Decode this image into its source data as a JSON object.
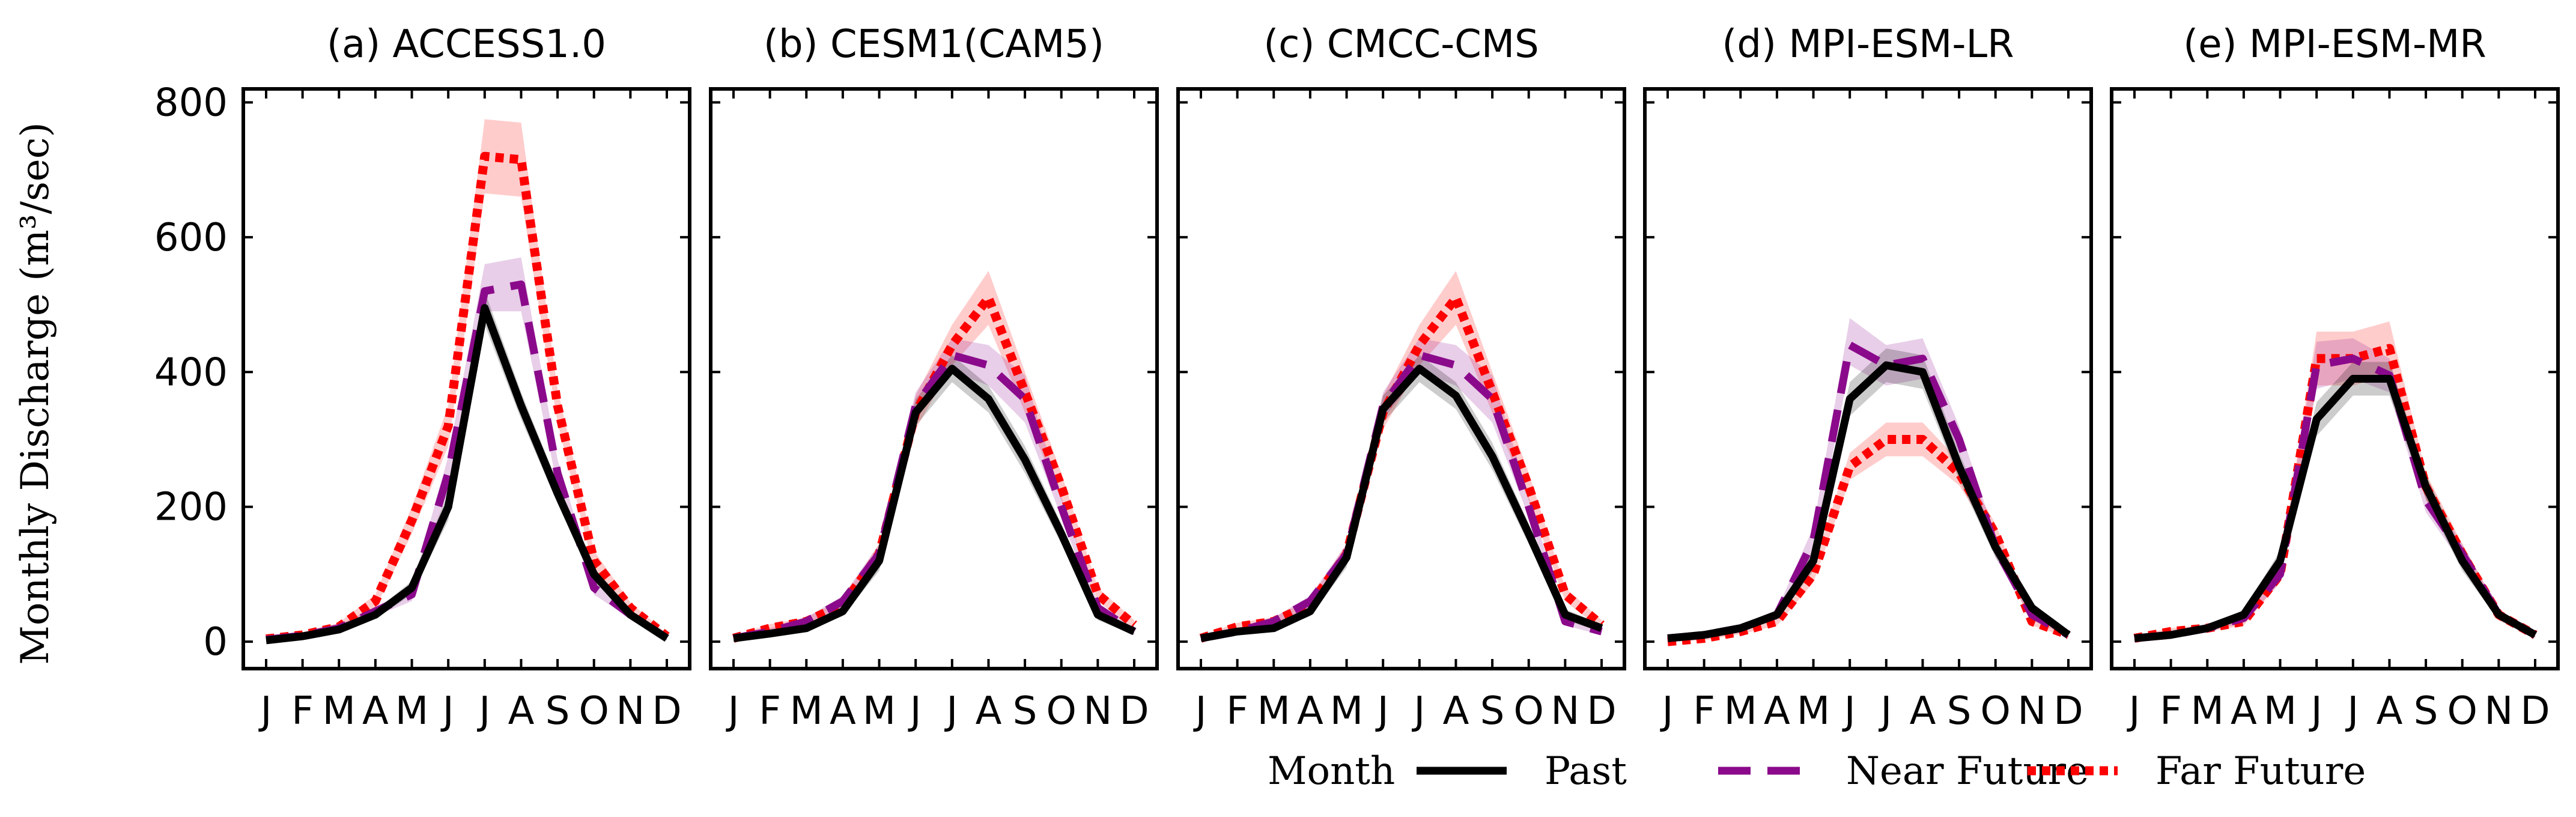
{
  "chart_data": {
    "type": "line",
    "ylabel": "Monthly Discharge (m³/sec)",
    "xlabel": "Month",
    "ylim": [
      -40,
      820
    ],
    "yticks": [
      0,
      200,
      400,
      600,
      800
    ],
    "categories": [
      "J",
      "F",
      "M",
      "A",
      "M",
      "J",
      "J",
      "A",
      "S",
      "O",
      "N",
      "D"
    ],
    "legend": {
      "position": "bottom-right",
      "entries": [
        {
          "key": "past",
          "label": "Past",
          "color": "#000000",
          "style": "solid"
        },
        {
          "key": "near",
          "label": "Near Future",
          "color": "#8b0a8b",
          "style": "dashed"
        },
        {
          "key": "far",
          "label": "Far Future",
          "color": "#ff0000",
          "style": "dotted"
        }
      ]
    },
    "panels": [
      {
        "title": "(a) ACCESS1.0",
        "series": [
          {
            "key": "past",
            "values": [
              2,
              8,
              18,
              40,
              80,
              200,
              495,
              350,
              220,
              100,
              40,
              5
            ],
            "band": [
              [
                0,
                6
              ],
              [
                4,
                12
              ],
              [
                14,
                22
              ],
              [
                34,
                46
              ],
              [
                70,
                90
              ],
              [
                180,
                220
              ],
              [
                470,
                520
              ],
              [
                330,
                370
              ],
              [
                205,
                235
              ],
              [
                90,
                110
              ],
              [
                34,
                46
              ],
              [
                2,
                8
              ]
            ]
          },
          {
            "key": "near",
            "values": [
              3,
              9,
              20,
              45,
              70,
              250,
              520,
              530,
              250,
              80,
              40,
              5
            ],
            "band": [
              [
                0,
                6
              ],
              [
                5,
                13
              ],
              [
                15,
                25
              ],
              [
                38,
                52
              ],
              [
                60,
                80
              ],
              [
                225,
                275
              ],
              [
                490,
                560
              ],
              [
                490,
                570
              ],
              [
                230,
                270
              ],
              [
                70,
                90
              ],
              [
                34,
                46
              ],
              [
                2,
                8
              ]
            ]
          },
          {
            "key": "far",
            "values": [
              4,
              10,
              22,
              60,
              180,
              320,
              720,
              715,
              350,
              120,
              50,
              8
            ],
            "band": [
              [
                1,
                7
              ],
              [
                6,
                14
              ],
              [
                16,
                28
              ],
              [
                50,
                70
              ],
              [
                160,
                200
              ],
              [
                290,
                350
              ],
              [
                665,
                775
              ],
              [
                660,
                770
              ],
              [
                325,
                375
              ],
              [
                105,
                135
              ],
              [
                42,
                58
              ],
              [
                4,
                12
              ]
            ]
          }
        ]
      },
      {
        "title": "(b) CESM1(CAM5)",
        "series": [
          {
            "key": "past",
            "values": [
              5,
              12,
              20,
              45,
              120,
              340,
              405,
              360,
              270,
              160,
              40,
              15
            ],
            "band": [
              [
                1,
                9
              ],
              [
                8,
                16
              ],
              [
                15,
                25
              ],
              [
                38,
                52
              ],
              [
                105,
                135
              ],
              [
                320,
                360
              ],
              [
                385,
                425
              ],
              [
                340,
                380
              ],
              [
                250,
                290
              ],
              [
                145,
                175
              ],
              [
                32,
                48
              ],
              [
                10,
                20
              ]
            ]
          },
          {
            "key": "near",
            "values": [
              5,
              15,
              30,
              60,
              130,
              350,
              425,
              410,
              360,
              200,
              50,
              15
            ],
            "band": [
              [
                1,
                9
              ],
              [
                10,
                20
              ],
              [
                24,
                36
              ],
              [
                52,
                68
              ],
              [
                115,
                145
              ],
              [
                330,
                370
              ],
              [
                400,
                450
              ],
              [
                380,
                440
              ],
              [
                325,
                395
              ],
              [
                185,
                215
              ],
              [
                42,
                58
              ],
              [
                10,
                20
              ]
            ]
          },
          {
            "key": "far",
            "values": [
              5,
              20,
              30,
              55,
              130,
              340,
              440,
              510,
              370,
              230,
              70,
              25
            ],
            "band": [
              [
                1,
                9
              ],
              [
                14,
                26
              ],
              [
                24,
                36
              ],
              [
                47,
                63
              ],
              [
                115,
                145
              ],
              [
                315,
                365
              ],
              [
                410,
                470
              ],
              [
                470,
                550
              ],
              [
                340,
                400
              ],
              [
                210,
                250
              ],
              [
                60,
                80
              ],
              [
                18,
                32
              ]
            ]
          }
        ]
      },
      {
        "title": "(c) CMCC-CMS",
        "series": [
          {
            "key": "past",
            "values": [
              5,
              15,
              20,
              45,
              125,
              345,
              405,
              365,
              275,
              160,
              40,
              20
            ],
            "band": [
              [
                1,
                9
              ],
              [
                10,
                20
              ],
              [
                15,
                25
              ],
              [
                38,
                52
              ],
              [
                110,
                140
              ],
              [
                325,
                365
              ],
              [
                385,
                425
              ],
              [
                345,
                385
              ],
              [
                255,
                295
              ],
              [
                145,
                175
              ],
              [
                32,
                48
              ],
              [
                14,
                26
              ]
            ]
          },
          {
            "key": "near",
            "values": [
              5,
              15,
              30,
              60,
              130,
              350,
              425,
              410,
              360,
              200,
              30,
              15
            ],
            "band": [
              [
                1,
                9
              ],
              [
                10,
                20
              ],
              [
                24,
                36
              ],
              [
                52,
                68
              ],
              [
                115,
                145
              ],
              [
                330,
                370
              ],
              [
                400,
                450
              ],
              [
                380,
                440
              ],
              [
                325,
                395
              ],
              [
                185,
                215
              ],
              [
                24,
                36
              ],
              [
                10,
                20
              ]
            ]
          },
          {
            "key": "far",
            "values": [
              5,
              22,
              30,
              55,
              130,
              340,
              440,
              510,
              370,
              230,
              70,
              25
            ],
            "band": [
              [
                1,
                9
              ],
              [
                16,
                28
              ],
              [
                24,
                36
              ],
              [
                47,
                63
              ],
              [
                115,
                145
              ],
              [
                315,
                365
              ],
              [
                410,
                470
              ],
              [
                470,
                550
              ],
              [
                340,
                400
              ],
              [
                210,
                250
              ],
              [
                60,
                80
              ],
              [
                18,
                32
              ]
            ]
          }
        ]
      },
      {
        "title": "(d) MPI-ESM-LR",
        "series": [
          {
            "key": "past",
            "values": [
              5,
              10,
              20,
              40,
              120,
              360,
              410,
              400,
              260,
              140,
              50,
              10
            ],
            "band": [
              [
                1,
                9
              ],
              [
                6,
                14
              ],
              [
                15,
                25
              ],
              [
                33,
                47
              ],
              [
                105,
                135
              ],
              [
                335,
                385
              ],
              [
                385,
                435
              ],
              [
                375,
                425
              ],
              [
                240,
                280
              ],
              [
                125,
                155
              ],
              [
                42,
                58
              ],
              [
                6,
                14
              ]
            ]
          },
          {
            "key": "near",
            "values": [
              5,
              10,
              20,
              40,
              150,
              440,
              410,
              420,
              300,
              140,
              40,
              10
            ],
            "band": [
              [
                1,
                9
              ],
              [
                6,
                14
              ],
              [
                15,
                25
              ],
              [
                33,
                47
              ],
              [
                130,
                170
              ],
              [
                410,
                480
              ],
              [
                380,
                440
              ],
              [
                390,
                450
              ],
              [
                280,
                320
              ],
              [
                125,
                155
              ],
              [
                34,
                46
              ],
              [
                6,
                14
              ]
            ]
          },
          {
            "key": "far",
            "values": [
              0,
              5,
              15,
              30,
              100,
              260,
              300,
              300,
              250,
              160,
              30,
              10
            ],
            "band": [
              [
                0,
                4
              ],
              [
                2,
                8
              ],
              [
                11,
                19
              ],
              [
                24,
                36
              ],
              [
                88,
                112
              ],
              [
                240,
                280
              ],
              [
                275,
                325
              ],
              [
                275,
                325
              ],
              [
                232,
                268
              ],
              [
                145,
                175
              ],
              [
                24,
                36
              ],
              [
                6,
                14
              ]
            ]
          }
        ]
      },
      {
        "title": "(e) MPI-ESM-MR",
        "series": [
          {
            "key": "past",
            "values": [
              5,
              10,
              20,
              40,
              120,
              330,
              390,
              390,
              230,
              120,
              40,
              10
            ],
            "band": [
              [
                1,
                9
              ],
              [
                6,
                14
              ],
              [
                15,
                25
              ],
              [
                33,
                47
              ],
              [
                105,
                135
              ],
              [
                305,
                355
              ],
              [
                365,
                415
              ],
              [
                365,
                415
              ],
              [
                212,
                248
              ],
              [
                105,
                135
              ],
              [
                32,
                48
              ],
              [
                6,
                14
              ]
            ]
          },
          {
            "key": "near",
            "values": [
              5,
              10,
              20,
              35,
              100,
              410,
              420,
              395,
              210,
              130,
              40,
              10
            ],
            "band": [
              [
                1,
                9
              ],
              [
                6,
                14
              ],
              [
                15,
                25
              ],
              [
                28,
                42
              ],
              [
                88,
                112
              ],
              [
                375,
                445
              ],
              [
                390,
                450
              ],
              [
                370,
                420
              ],
              [
                192,
                228
              ],
              [
                115,
                145
              ],
              [
                32,
                48
              ],
              [
                6,
                14
              ]
            ]
          },
          {
            "key": "far",
            "values": [
              5,
              15,
              20,
              30,
              100,
              420,
              420,
              435,
              230,
              130,
              40,
              10
            ],
            "band": [
              [
                1,
                9
              ],
              [
                10,
                20
              ],
              [
                15,
                25
              ],
              [
                24,
                36
              ],
              [
                88,
                112
              ],
              [
                380,
                460
              ],
              [
                380,
                460
              ],
              [
                395,
                475
              ],
              [
                210,
                250
              ],
              [
                115,
                145
              ],
              [
                32,
                48
              ],
              [
                6,
                14
              ]
            ]
          }
        ]
      }
    ]
  }
}
